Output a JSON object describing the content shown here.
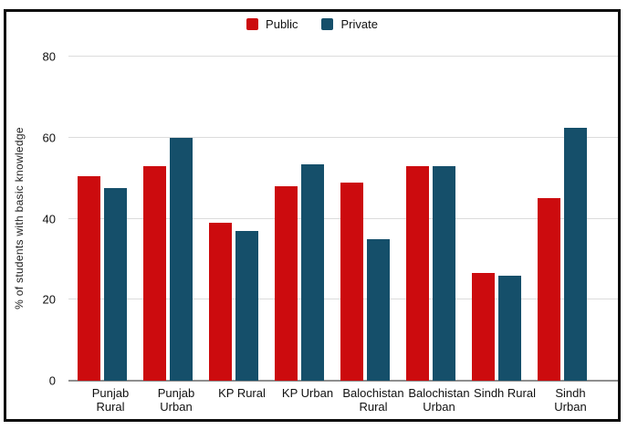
{
  "legend": {
    "items": [
      {
        "label": "Public",
        "color": "#cc0b0e"
      },
      {
        "label": "Private",
        "color": "#154f6a"
      }
    ]
  },
  "chart_data": {
    "type": "bar",
    "title": "",
    "xlabel": "",
    "ylabel": "% of students with basic knowledge",
    "ylim": [
      0,
      80
    ],
    "yticks": [
      0,
      20,
      40,
      60,
      80
    ],
    "grid": true,
    "legend_position": "top-center",
    "categories": [
      "Punjab Rural",
      "Punjab Urban",
      "KP Rural",
      "KP Urban",
      "Balochistan Rural",
      "Balochistan Urban",
      "Sindh Rural",
      "Sindh Urban"
    ],
    "series": [
      {
        "name": "Public",
        "color": "#cc0b0e",
        "values": [
          50.5,
          53,
          39,
          48,
          49,
          53,
          26.5,
          45
        ]
      },
      {
        "name": "Private",
        "color": "#154f6a",
        "values": [
          47.5,
          60,
          37,
          53.5,
          35,
          53,
          26,
          62.5
        ]
      }
    ]
  }
}
